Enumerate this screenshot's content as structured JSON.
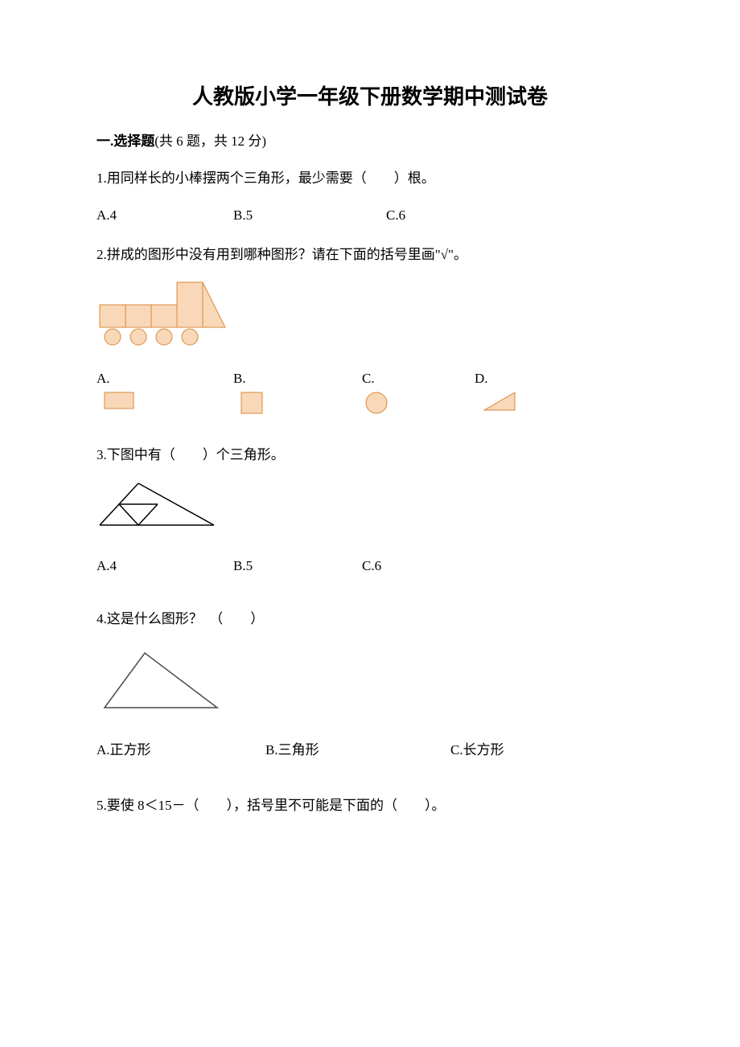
{
  "title": "人教版小学一年级下册数学期中测试卷",
  "section1": {
    "heading_prefix": "一.选择题",
    "heading_suffix": "(共 6 题，共 12 分)"
  },
  "q1": {
    "text": "1.用同样长的小棒摆两个三角形，最少需要（　　）根。",
    "a": "A.4",
    "b": "B.5",
    "c": "C.6"
  },
  "q2": {
    "text": "2.拼成的图形中没有用到哪种图形？请在下面的括号里画\"√\"。",
    "a": "A.",
    "b": "B.",
    "c": "C.",
    "d": "D.",
    "train": {
      "fill": "#f8d8b8",
      "stroke": "#d98a3a",
      "stroke_w": 1
    },
    "shapes": {
      "rect_fill": "#f8d8b8",
      "rect_stroke": "#d98a3a",
      "circle_fill": "#f8d8b8",
      "circle_stroke": "#d98a3a",
      "tri_fill": "#f8d8b8",
      "tri_stroke": "#d98a3a"
    }
  },
  "q3": {
    "text": "3.下图中有（　　）个三角形。",
    "a": "A.4",
    "b": "B.5",
    "c": "C.6",
    "tri": {
      "stroke": "#000000",
      "stroke_w": 1.5
    }
  },
  "q4": {
    "text": "4.这是什么图形？　（　　）",
    "a": "A.正方形",
    "b": "B.三角形",
    "c": "C.长方形",
    "tri": {
      "stroke": "#4a4a4a",
      "stroke_w": 1.5
    }
  },
  "q5": {
    "text": "5.要使 8＜15－（　　），括号里不可能是下面的（　　）。"
  }
}
